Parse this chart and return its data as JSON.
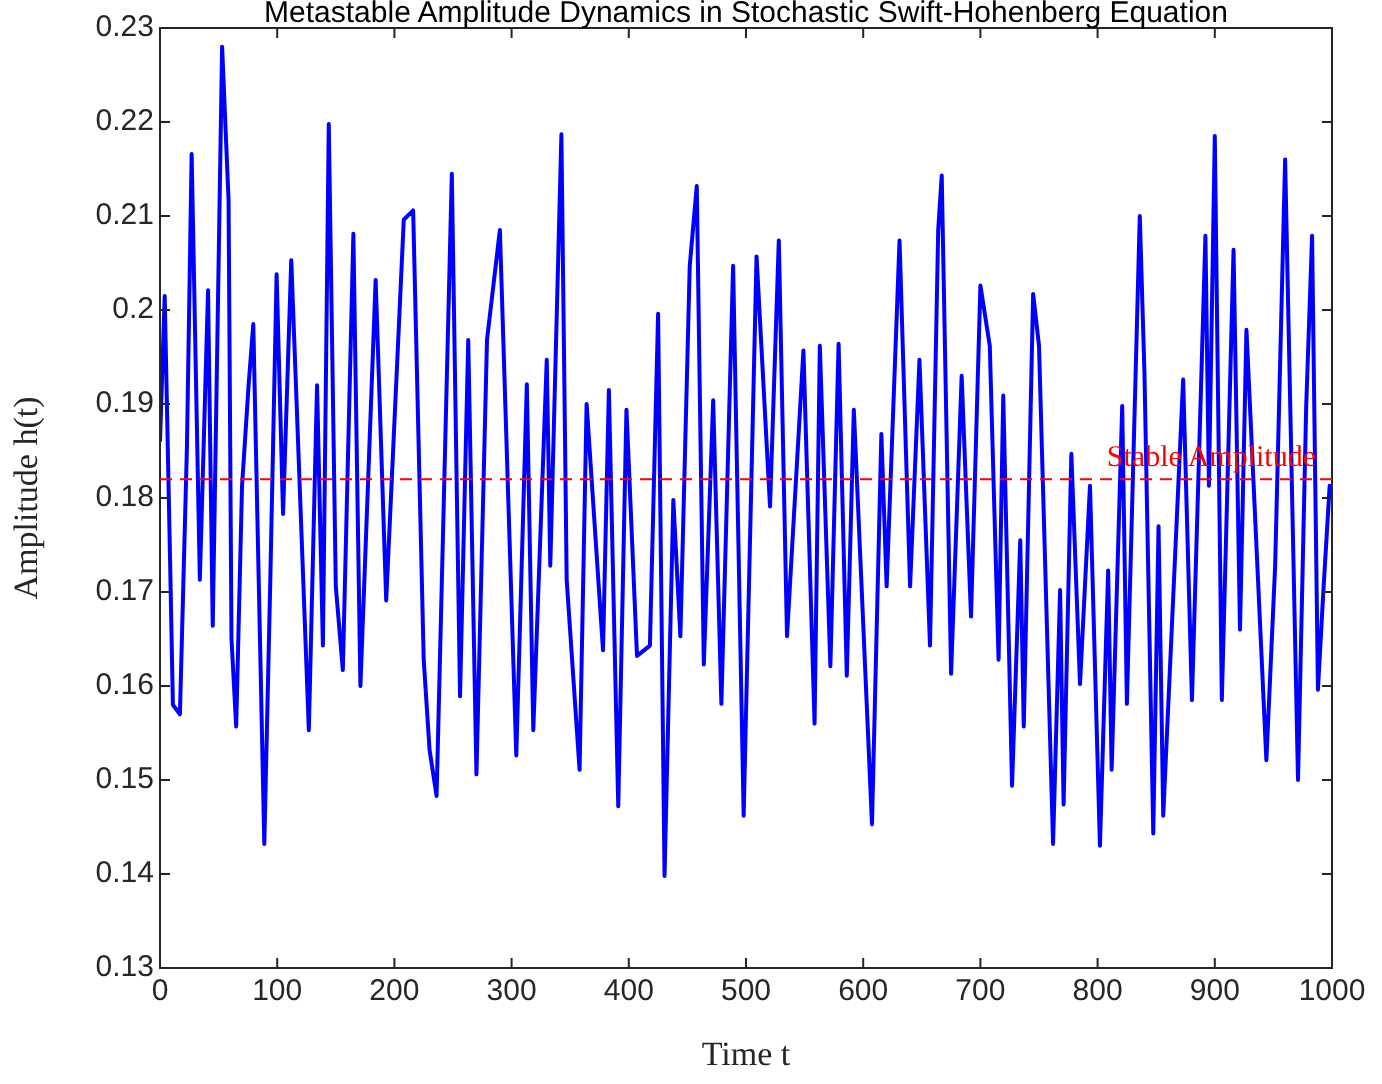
{
  "chart_data": {
    "type": "line",
    "title": "Metastable Amplitude Dynamics in Stochastic Swift-Hohenberg Equation",
    "xlabel": "Time t",
    "ylabel": "Amplitude h(t)",
    "x": [
      0,
      4,
      8.5,
      11,
      17,
      23,
      27,
      34,
      41,
      45,
      53,
      58.5,
      61,
      65,
      70,
      75.6,
      79.6,
      89,
      94,
      99.5,
      105,
      112,
      127,
      134,
      139,
      144,
      150,
      156,
      165,
      171,
      184,
      193,
      208,
      216,
      225,
      230,
      236,
      249,
      256,
      263,
      270,
      279,
      290,
      304,
      313,
      318.5,
      330,
      333,
      342.5,
      347,
      358,
      364,
      378,
      383,
      391,
      398,
      407,
      418,
      425,
      430.5,
      438,
      444,
      452,
      458,
      464,
      472,
      479,
      489,
      498,
      509,
      520.5,
      528,
      535,
      549,
      558.5,
      563,
      572,
      579,
      586,
      592,
      607.5,
      615.5,
      620,
      631,
      640,
      648,
      657,
      664,
      667,
      675,
      684,
      692,
      700,
      708,
      715.5,
      719.5,
      727,
      734,
      737,
      745,
      750,
      762,
      768,
      771,
      777.6,
      785,
      793.5,
      802,
      809,
      812,
      821,
      825,
      836,
      840,
      847.5,
      852,
      856,
      873,
      880.5,
      892,
      895,
      900,
      906,
      916,
      921.5,
      927,
      944,
      951.5,
      960,
      971,
      978,
      983,
      988,
      992.5,
      998,
      1000
    ],
    "series": [
      {
        "color": "#0000ff",
        "values": [
          0.186,
          0.2015,
          0.174,
          0.158,
          0.157,
          0.1855,
          0.2166,
          0.1713,
          0.2021,
          0.1664,
          0.228,
          0.2117,
          0.165,
          0.1557,
          0.1813,
          0.192,
          0.1985,
          0.1432,
          0.1706,
          0.2038,
          0.1783,
          0.2053,
          0.1553,
          0.192,
          0.1643,
          0.2198,
          0.1706,
          0.1617,
          0.2081,
          0.16,
          0.2032,
          0.1691,
          0.2096,
          0.2106,
          0.1628,
          0.1532,
          0.1483,
          0.2145,
          0.1589,
          0.1968,
          0.1506,
          0.1968,
          0.2085,
          0.1526,
          0.1921,
          0.1553,
          0.1947,
          0.1728,
          0.2187,
          0.1713,
          0.1511,
          0.19,
          0.1638,
          0.1915,
          0.1472,
          0.1894,
          0.1632,
          0.1643,
          0.1996,
          0.1398,
          0.1798,
          0.1653,
          0.2047,
          0.2132,
          0.1623,
          0.1904,
          0.1581,
          0.2047,
          0.1462,
          0.2057,
          0.1791,
          0.2074,
          0.1653,
          0.1957,
          0.156,
          0.1962,
          0.1621,
          0.1964,
          0.1611,
          0.1894,
          0.1453,
          0.1868,
          0.1706,
          0.2074,
          0.1706,
          0.1947,
          0.1643,
          0.2085,
          0.2143,
          0.1613,
          0.193,
          0.1674,
          0.2026,
          0.1962,
          0.1628,
          0.1909,
          0.1494,
          0.1755,
          0.1557,
          0.2017,
          0.1962,
          0.1432,
          0.1702,
          0.1474,
          0.1847,
          0.1602,
          0.1813,
          0.143,
          0.1723,
          0.1511,
          0.1898,
          0.1581,
          0.21,
          0.1932,
          0.1443,
          0.177,
          0.1462,
          0.1926,
          0.1585,
          0.2079,
          0.1813,
          0.2185,
          0.1585,
          0.2064,
          0.166,
          0.1979,
          0.1521,
          0.1728,
          0.216,
          0.15,
          0.1898,
          0.2079,
          0.1596,
          0.1698,
          0.1813,
          0.181
        ]
      }
    ],
    "xlim": [
      0,
      1000
    ],
    "xticks": [
      0,
      100,
      200,
      300,
      400,
      500,
      600,
      700,
      800,
      900,
      1000
    ],
    "ylim": [
      0.13,
      0.23
    ],
    "yticks": [
      0.13,
      0.14,
      0.15,
      0.16,
      0.17,
      0.18,
      0.19,
      0.2,
      0.21,
      0.22,
      0.23
    ],
    "ref_lines": [
      {
        "axis": "y",
        "value": 0.182,
        "label": "Stable Amplitude",
        "color": "#ff0000",
        "line_style": "dashed"
      }
    ],
    "grid": false,
    "legend": false,
    "marker": "none",
    "line_style": "solid"
  }
}
